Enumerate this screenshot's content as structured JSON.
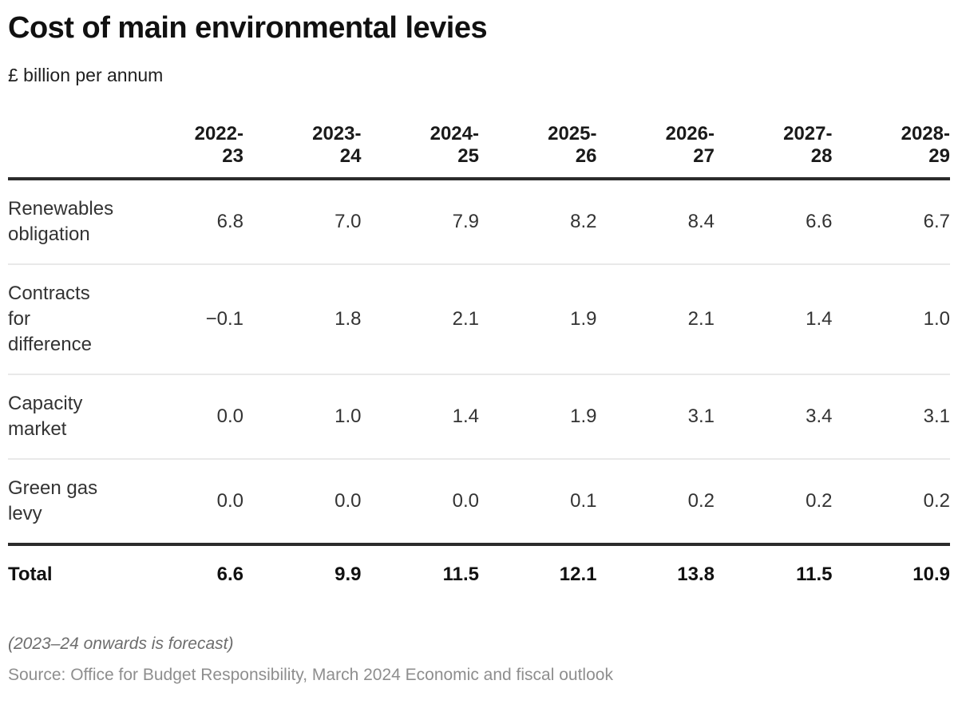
{
  "title": "Cost of main environmental levies",
  "subtitle": "£ billion per annum",
  "table": {
    "columns": [
      "2022-\n23",
      "2023-\n24",
      "2024-\n25",
      "2025-\n26",
      "2026-\n27",
      "2027-\n28",
      "2028-\n29"
    ],
    "rows": [
      {
        "label": "Renewables obligation",
        "values": [
          "6.8",
          "7.0",
          "7.9",
          "8.2",
          "8.4",
          "6.6",
          "6.7"
        ]
      },
      {
        "label": "Contracts for difference",
        "values": [
          "−0.1",
          "1.8",
          "2.1",
          "1.9",
          "2.1",
          "1.4",
          "1.0"
        ]
      },
      {
        "label": "Capacity market",
        "values": [
          "0.0",
          "1.0",
          "1.4",
          "1.9",
          "3.1",
          "3.4",
          "3.1"
        ]
      },
      {
        "label": "Green gas levy",
        "values": [
          "0.0",
          "0.0",
          "0.0",
          "0.1",
          "0.2",
          "0.2",
          "0.2"
        ]
      }
    ],
    "total": {
      "label": "Total",
      "values": [
        "6.6",
        "9.9",
        "11.5",
        "12.1",
        "13.8",
        "11.5",
        "10.9"
      ]
    }
  },
  "footnote": "(2023–24 onwards is forecast)",
  "source": "Source: Office for Budget Responsibility, March 2024 Economic and fiscal outlook",
  "colors": {
    "text_primary": "#111111",
    "text_body": "#333333",
    "rule_heavy": "#2b2b2b",
    "rule_light": "#e9e9e9",
    "footnote_gray": "#6d6d6d",
    "source_gray": "#8e8e8e"
  },
  "chart_data": {
    "type": "table",
    "title": "Cost of main environmental levies",
    "unit": "£ billion per annum",
    "categories": [
      "2022-23",
      "2023-24",
      "2024-25",
      "2025-26",
      "2026-27",
      "2027-28",
      "2028-29"
    ],
    "series": [
      {
        "name": "Renewables obligation",
        "values": [
          6.8,
          7.0,
          7.9,
          8.2,
          8.4,
          6.6,
          6.7
        ]
      },
      {
        "name": "Contracts for difference",
        "values": [
          -0.1,
          1.8,
          2.1,
          1.9,
          2.1,
          1.4,
          1.0
        ]
      },
      {
        "name": "Capacity market",
        "values": [
          0.0,
          1.0,
          1.4,
          1.9,
          3.1,
          3.4,
          3.1
        ]
      },
      {
        "name": "Green gas levy",
        "values": [
          0.0,
          0.0,
          0.0,
          0.1,
          0.2,
          0.2,
          0.2
        ]
      },
      {
        "name": "Total",
        "values": [
          6.6,
          9.9,
          11.5,
          12.1,
          13.8,
          11.5,
          10.9
        ]
      }
    ],
    "notes": [
      "(2023–24 onwards is forecast)",
      "Source: Office for Budget Responsibility, March 2024 Economic and fiscal outlook"
    ]
  }
}
